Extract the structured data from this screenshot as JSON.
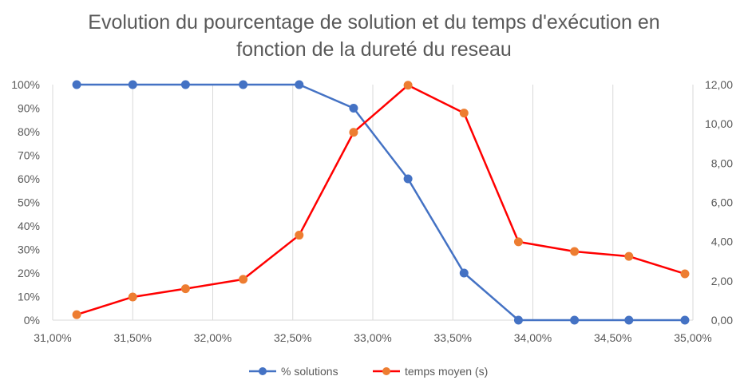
{
  "chart_data": {
    "type": "line",
    "title_line1": "Evolution du pourcentage de solution et du temps d'exécution en",
    "title_line2": "fonction de la dureté du reseau",
    "x": [
      31.15,
      31.5,
      31.83,
      32.19,
      32.54,
      32.88,
      33.22,
      33.57,
      33.91,
      34.26,
      34.6,
      34.95
    ],
    "x_tick_labels": [
      "31,00%",
      "31,50%",
      "32,00%",
      "32,50%",
      "33,00%",
      "33,50%",
      "34,00%",
      "34,50%",
      "35,00%"
    ],
    "x_ticks": [
      31.0,
      31.5,
      32.0,
      32.5,
      33.0,
      33.5,
      34.0,
      34.5,
      35.0
    ],
    "xlim": [
      31.0,
      35.0
    ],
    "y_left_tick_labels": [
      "0%",
      "10%",
      "20%",
      "30%",
      "40%",
      "50%",
      "60%",
      "70%",
      "80%",
      "90%",
      "100%"
    ],
    "y_left_ticks": [
      0,
      10,
      20,
      30,
      40,
      50,
      60,
      70,
      80,
      90,
      100
    ],
    "ylim_left": [
      0,
      100
    ],
    "y_right_tick_labels": [
      "0,00",
      "2,00",
      "4,00",
      "6,00",
      "8,00",
      "10,00",
      "12,00"
    ],
    "y_right_ticks": [
      0,
      2,
      4,
      6,
      8,
      10,
      12
    ],
    "ylim_right": [
      0,
      12
    ],
    "grid": "vertical",
    "legend_position": "bottom",
    "series": [
      {
        "name": "% solutions",
        "axis": "left",
        "line_color": "#4472C4",
        "marker_color": "#4472C4",
        "values": [
          100,
          100,
          100,
          100,
          100,
          90,
          60,
          20,
          0,
          0,
          0,
          0
        ]
      },
      {
        "name": "temps moyen (s)",
        "axis": "right",
        "line_color": "#FF0000",
        "marker_color": "#ED7D31",
        "values": [
          0.28,
          1.18,
          1.6,
          2.08,
          4.33,
          9.57,
          11.97,
          10.55,
          3.99,
          3.5,
          3.25,
          2.36
        ]
      }
    ]
  }
}
